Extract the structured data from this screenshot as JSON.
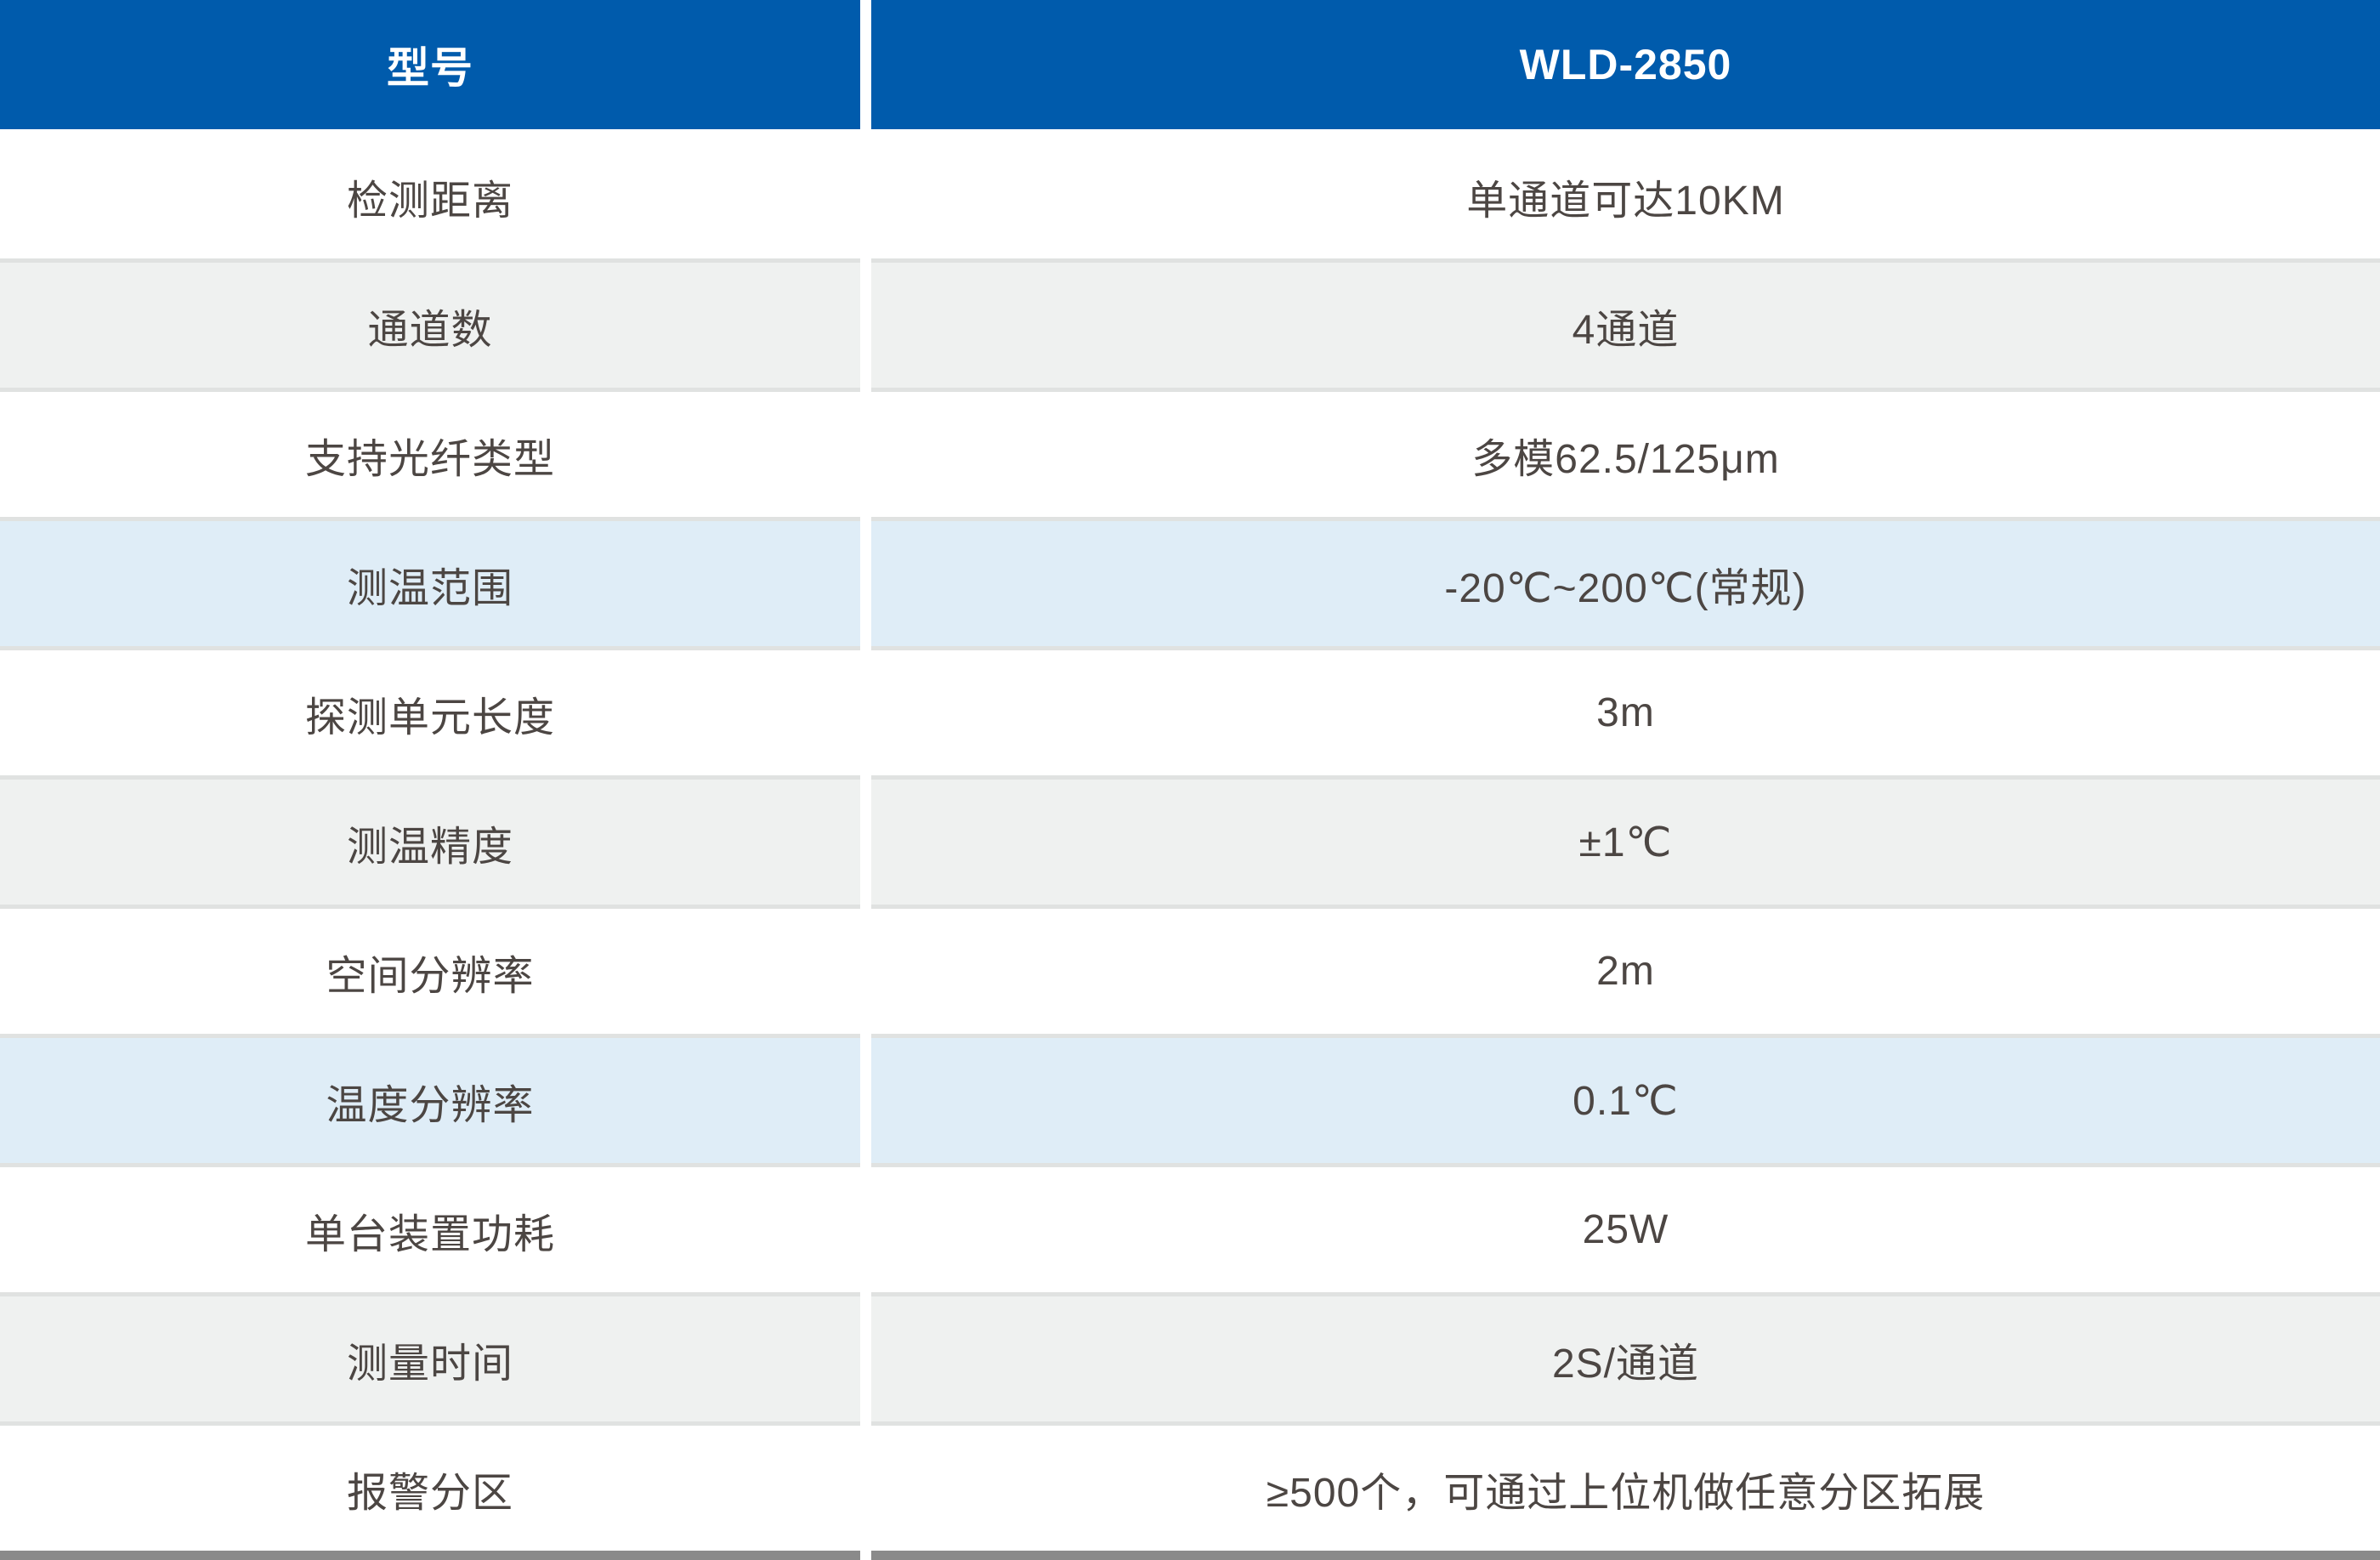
{
  "table": {
    "header": {
      "label": "型号",
      "value": "WLD-2850"
    },
    "rows": [
      {
        "label": "检测距离",
        "value": "单通道可达10KM",
        "bg": "white"
      },
      {
        "label": "通道数",
        "value": "4通道",
        "bg": "gray"
      },
      {
        "label": "支持光纤类型",
        "value": "多模62.5/125μm",
        "bg": "white"
      },
      {
        "label": "测温范围",
        "value": "-20℃~200℃(常规)",
        "bg": "blue"
      },
      {
        "label": "探测单元长度",
        "value": "3m",
        "bg": "white"
      },
      {
        "label": "测温精度",
        "value": "±1℃",
        "bg": "gray"
      },
      {
        "label": "空间分辨率",
        "value": "2m",
        "bg": "white"
      },
      {
        "label": "温度分辨率",
        "value": "0.1℃",
        "bg": "blue"
      },
      {
        "label": "单台装置功耗",
        "value": "25W",
        "bg": "white"
      },
      {
        "label": "测量时间",
        "value": "2S/通道",
        "bg": "gray"
      },
      {
        "label": "报警分区",
        "value": "≥500个，可通过上位机做任意分区拓展",
        "bg": "white"
      }
    ]
  },
  "colors": {
    "header_bg": "#005BAC",
    "header_text": "#FFFFFF",
    "row_gray": "#EFF1F0",
    "row_blue": "#DFEDF7",
    "divider": "#E0E2E1",
    "bottom_bar": "#8A8A8A",
    "body_text": "#4C4643"
  }
}
